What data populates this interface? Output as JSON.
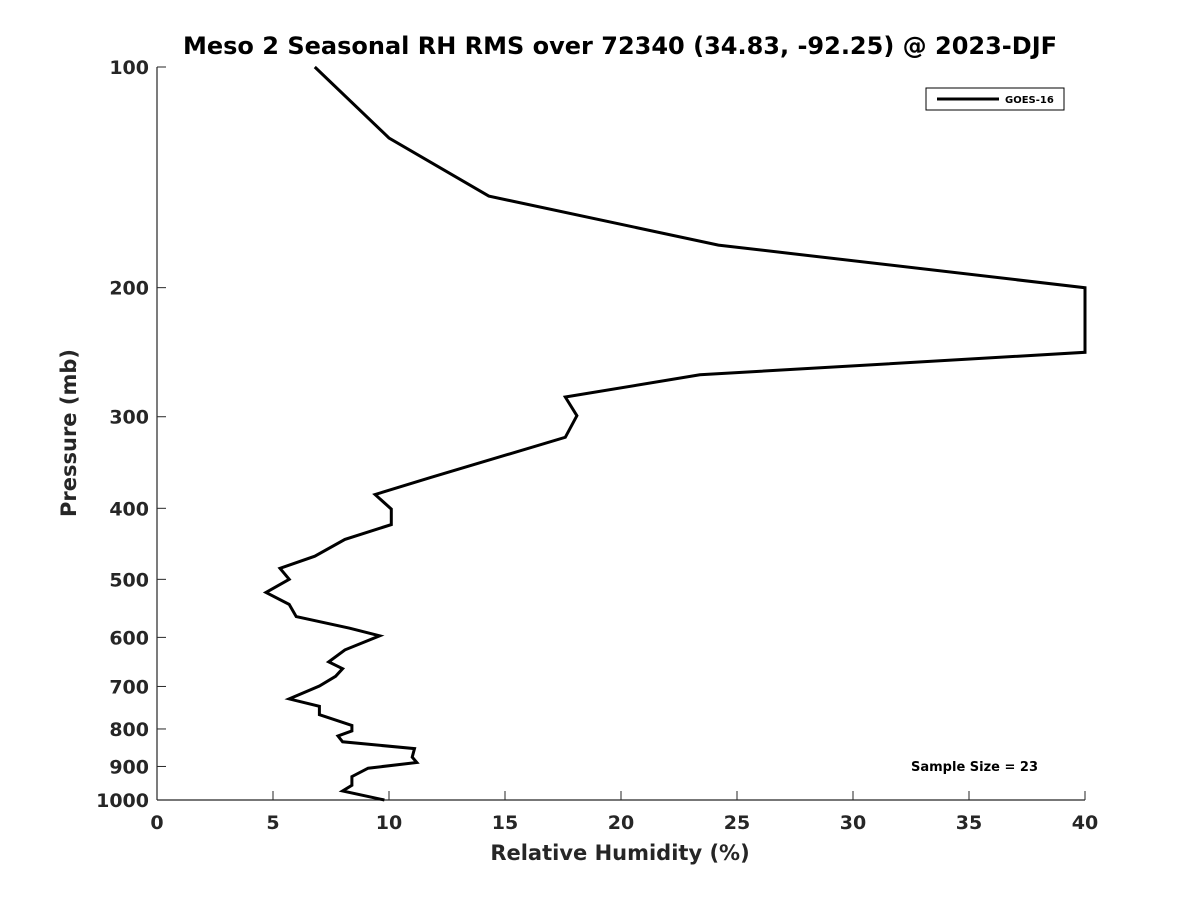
{
  "chart_data": {
    "type": "line",
    "title": "Meso 2 Seasonal RH RMS over 72340 (34.83, -92.25) @ 2023-DJF",
    "xlabel": "Relative Humidity (%)",
    "ylabel": "Pressure (mb)",
    "xlim": [
      0,
      40
    ],
    "ylim": [
      100,
      1000
    ],
    "y_scale": "log",
    "y_reversed": true,
    "grid": false,
    "legend_position": "top-right",
    "x_ticks": [
      "0",
      "5",
      "10",
      "15",
      "20",
      "25",
      "30",
      "35",
      "40"
    ],
    "y_ticks": [
      "100",
      "200",
      "300",
      "400",
      "500",
      "600",
      "700",
      "800",
      "900",
      "1000"
    ],
    "annotation": "Sample Size = 23",
    "series": [
      {
        "name": "GOES-16",
        "color": "#000000",
        "points": [
          [
            6.8,
            100
          ],
          [
            10.0,
            125
          ],
          [
            14.3,
            150
          ],
          [
            24.2,
            175
          ],
          [
            40.0,
            200
          ],
          [
            40.0,
            245
          ],
          [
            23.4,
            263
          ],
          [
            17.6,
            282
          ],
          [
            18.1,
            299
          ],
          [
            17.6,
            320
          ],
          [
            11.8,
            363
          ],
          [
            9.4,
            383
          ],
          [
            10.1,
            401
          ],
          [
            10.1,
            421
          ],
          [
            8.1,
            441
          ],
          [
            6.8,
            465
          ],
          [
            5.3,
            483
          ],
          [
            5.7,
            500
          ],
          [
            4.7,
            521
          ],
          [
            5.7,
            541
          ],
          [
            6.0,
            562
          ],
          [
            8.3,
            583
          ],
          [
            9.6,
            597
          ],
          [
            8.1,
            624
          ],
          [
            7.4,
            648
          ],
          [
            8.0,
            662
          ],
          [
            7.7,
            678
          ],
          [
            7.0,
            699
          ],
          [
            5.7,
            728
          ],
          [
            7.0,
            745
          ],
          [
            7.0,
            765
          ],
          [
            8.4,
            791
          ],
          [
            8.4,
            805
          ],
          [
            7.8,
            818
          ],
          [
            8.0,
            833
          ],
          [
            11.1,
            851
          ],
          [
            11.0,
            874
          ],
          [
            11.2,
            889
          ],
          [
            9.1,
            905
          ],
          [
            8.4,
            929
          ],
          [
            8.4,
            955
          ],
          [
            8.0,
            972
          ],
          [
            9.8,
            1000
          ]
        ]
      }
    ]
  }
}
